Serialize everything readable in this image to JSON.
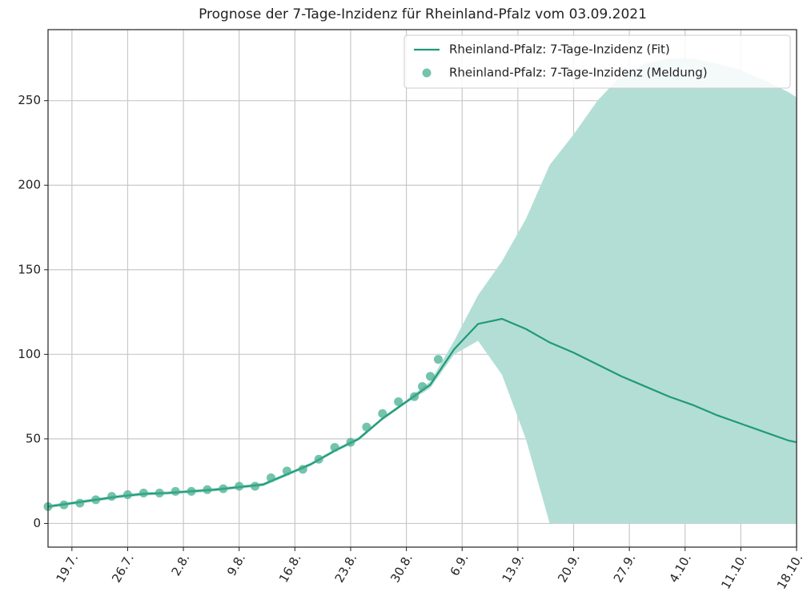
{
  "chart_data": {
    "type": "line",
    "title": "Prognose der 7-Tage-Inzidenz für Rheinland-Pfalz vom 03.09.2021",
    "x": [
      "16.7.",
      "19.7.",
      "22.7.",
      "25.7.",
      "28.7.",
      "31.7.",
      "3.8.",
      "6.8.",
      "9.8.",
      "12.8.",
      "15.8.",
      "18.8.",
      "21.8.",
      "24.8.",
      "27.8.",
      "30.8.",
      "2.9.",
      "5.9.",
      "8.9.",
      "11.9.",
      "14.9.",
      "17.9.",
      "20.9.",
      "23.9.",
      "26.9.",
      "29.9.",
      "2.10.",
      "5.10.",
      "8.10.",
      "11.10.",
      "14.10.",
      "17.10.",
      "18.10."
    ],
    "series": [
      {
        "name": "Rheinland-Pfalz: 7-Tage-Inzidenz (Fit)",
        "color": "#1f9a78",
        "values": [
          10,
          12,
          14,
          16,
          17.5,
          18,
          19,
          20,
          21.5,
          23,
          29,
          35,
          43,
          50,
          62,
          72,
          82,
          103,
          118,
          121,
          115,
          107,
          101,
          94,
          87,
          81,
          75,
          70,
          64,
          59,
          54,
          49,
          48
        ]
      },
      {
        "name": "Rheinland-Pfalz: 7-Tage-Inzidenz (Meldung)",
        "type": "scatter",
        "color": "#3aaa89",
        "x": [
          "16.7.",
          "18.7.",
          "20.7.",
          "22.7.",
          "24.7.",
          "26.7.",
          "28.7.",
          "30.7.",
          "1.8.",
          "3.8.",
          "5.8.",
          "7.8.",
          "9.8.",
          "11.8.",
          "13.8.",
          "15.8.",
          "17.8.",
          "19.8.",
          "21.8.",
          "23.8.",
          "25.8.",
          "27.8.",
          "29.8.",
          "31.8.",
          "1.9.",
          "2.9.",
          "3.9."
        ],
        "values": [
          10,
          11,
          12,
          14,
          16,
          17,
          18,
          18,
          19,
          19,
          20,
          20.5,
          22,
          22,
          27,
          31,
          32,
          38,
          45,
          48,
          57,
          65,
          72,
          75,
          81,
          87,
          97
        ]
      }
    ],
    "band": {
      "color": "#b3ded5",
      "upper": [
        11,
        13,
        15,
        17,
        18.5,
        19,
        20,
        21,
        22.5,
        24,
        30,
        36,
        44,
        51,
        63,
        73,
        84,
        108,
        135,
        155,
        180,
        212,
        230,
        250,
        265,
        272,
        275,
        275,
        272,
        268,
        262,
        255,
        252
      ],
      "lower": [
        9,
        11,
        13,
        15,
        16.5,
        17,
        18,
        19,
        20.5,
        22,
        28,
        34,
        42,
        49,
        61,
        71,
        80,
        100,
        108,
        88,
        50,
        0,
        0,
        0,
        0,
        0,
        0,
        0,
        0,
        0,
        0,
        0,
        0
      ]
    },
    "xlim": [
      "16.7.",
      "18.10."
    ],
    "xticks": [
      "19.7.",
      "26.7.",
      "2.8.",
      "9.8.",
      "16.8.",
      "23.8.",
      "30.8.",
      "6.9.",
      "13.9.",
      "20.9.",
      "27.9.",
      "4.10.",
      "11.10.",
      "18.10."
    ],
    "ylim": [
      -14,
      292
    ],
    "yticks": [
      0,
      50,
      100,
      150,
      200,
      250
    ],
    "grid": true,
    "legend": "upper right"
  }
}
